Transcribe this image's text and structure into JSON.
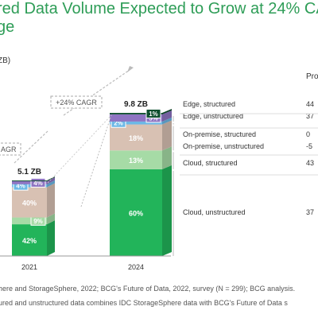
{
  "title": {
    "line1": "red Data Volume Expected to Grow at 24% CA",
    "line2": "ge"
  },
  "unit_fragment": "ZB)",
  "column_header_fragment": "Pro",
  "footnotes": {
    "source": "here and StorageSphere, 2022; BCG's Future of Data, 2022, survey (N = 299); BCG analysis.",
    "note": "ured and unstructured data combines IDC StorageSphere data with BCG's Future of Data s"
  },
  "chart_data": {
    "type": "bar",
    "stacked": true,
    "categories": [
      "2021",
      "2024"
    ],
    "totals_labels": [
      "5.1 ZB",
      "9.8 ZB"
    ],
    "cagr_label": "+24% CAGR",
    "cagr_partial_label": "AGR",
    "series": [
      {
        "name": "Cloud, unstructured",
        "values": [
          42,
          60
        ],
        "labels": [
          "42%",
          "60%"
        ],
        "color": "#22b45a"
      },
      {
        "name": "Cloud, structured",
        "values": [
          9,
          13
        ],
        "labels": [
          "9%",
          "13%"
        ],
        "color": "#a6dba6"
      },
      {
        "name": "On-premise, unstructured",
        "values": [
          40,
          18
        ],
        "labels": [
          "40%",
          "18%"
        ],
        "color": "#d8c1b3"
      },
      {
        "name": "On-premise, structured",
        "values": [
          4,
          2
        ],
        "labels": [
          "4%",
          "2%"
        ],
        "color": "#6cb8e6"
      },
      {
        "name": "Edge, unstructured",
        "values": [
          4,
          5
        ],
        "labels": [
          "4%",
          "5%"
        ],
        "color": "#8e74c2"
      },
      {
        "name": "Edge, structured",
        "values": [
          1,
          1
        ],
        "labels": [
          "",
          "1%"
        ],
        "color": "#0b4d2c"
      }
    ],
    "legend_values": [
      "37",
      "43",
      "-5",
      "0",
      "37",
      "44"
    ]
  }
}
